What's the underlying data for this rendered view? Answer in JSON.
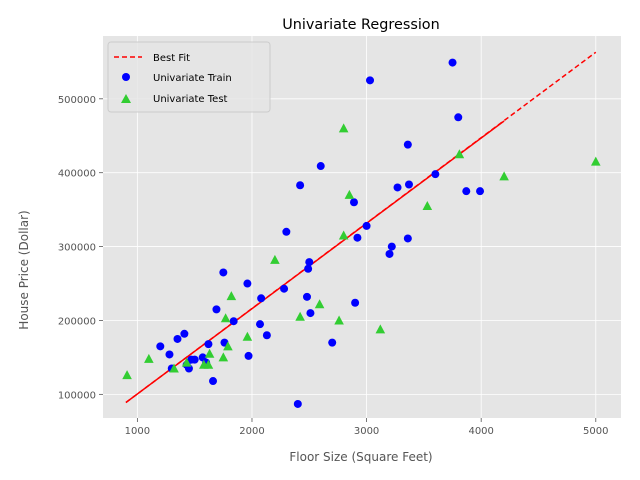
{
  "chart_data": {
    "type": "scatter",
    "title": "Univariate Regression",
    "xlabel": "Floor Size (Square Feet)",
    "ylabel": "House Price (Dollar)",
    "xlim": [
      700,
      5220
    ],
    "ylim": [
      68000,
      585000
    ],
    "x_ticks": [
      1000,
      2000,
      3000,
      4000,
      5000
    ],
    "y_ticks": [
      100000,
      200000,
      300000,
      400000,
      500000
    ],
    "grid": true,
    "legend_position": "top-left",
    "colors": {
      "background": "#E5E5E5",
      "grid": "#FFFFFF",
      "best_fit": "#FF0000",
      "train": "#0000FF",
      "test": "#32CD32"
    },
    "best_fit": {
      "name": "Best Fit",
      "x": [
        900,
        5000
      ],
      "y": [
        89000,
        563000
      ]
    },
    "train_fit_line": {
      "x": [
        900,
        4200
      ],
      "y": [
        89000,
        470000
      ]
    },
    "series": [
      {
        "name": "Univariate Train",
        "marker": "circle",
        "x": [
          1200,
          1280,
          1300,
          1350,
          1410,
          1430,
          1450,
          1470,
          1500,
          1570,
          1600,
          1620,
          1660,
          1690,
          1750,
          1760,
          1840,
          1960,
          1970,
          2070,
          2080,
          2130,
          2280,
          2300,
          2400,
          2420,
          2480,
          2490,
          2500,
          2510,
          2600,
          2700,
          2890,
          2900,
          2920,
          3000,
          3030,
          3200,
          3220,
          3270,
          3360,
          3360,
          3370,
          3600,
          3750,
          3800,
          3870,
          3990
        ],
        "y": [
          165000,
          154000,
          135000,
          175000,
          182000,
          140000,
          135000,
          147000,
          147000,
          150000,
          143000,
          168000,
          118000,
          215000,
          265000,
          170000,
          199000,
          250000,
          152000,
          195000,
          230000,
          180000,
          243000,
          320000,
          87000,
          383000,
          232000,
          270000,
          279000,
          210000,
          409000,
          170000,
          360000,
          224000,
          312000,
          328000,
          525000,
          290000,
          300000,
          380000,
          438000,
          311000,
          384000,
          398000,
          549000,
          475000,
          375000,
          375000
        ]
      },
      {
        "name": "Univariate Test",
        "marker": "triangle",
        "x": [
          910,
          1100,
          1320,
          1430,
          1580,
          1620,
          1630,
          1750,
          1770,
          1790,
          1820,
          1960,
          2200,
          2420,
          2590,
          2760,
          2800,
          2800,
          2850,
          3120,
          3530,
          3810,
          4200,
          5000
        ],
        "y": [
          126000,
          148000,
          135000,
          143000,
          140000,
          140000,
          155000,
          150000,
          203000,
          165000,
          233000,
          178000,
          282000,
          205000,
          222000,
          200000,
          315000,
          460000,
          370000,
          188000,
          355000,
          425000,
          395000,
          415000
        ]
      }
    ]
  }
}
